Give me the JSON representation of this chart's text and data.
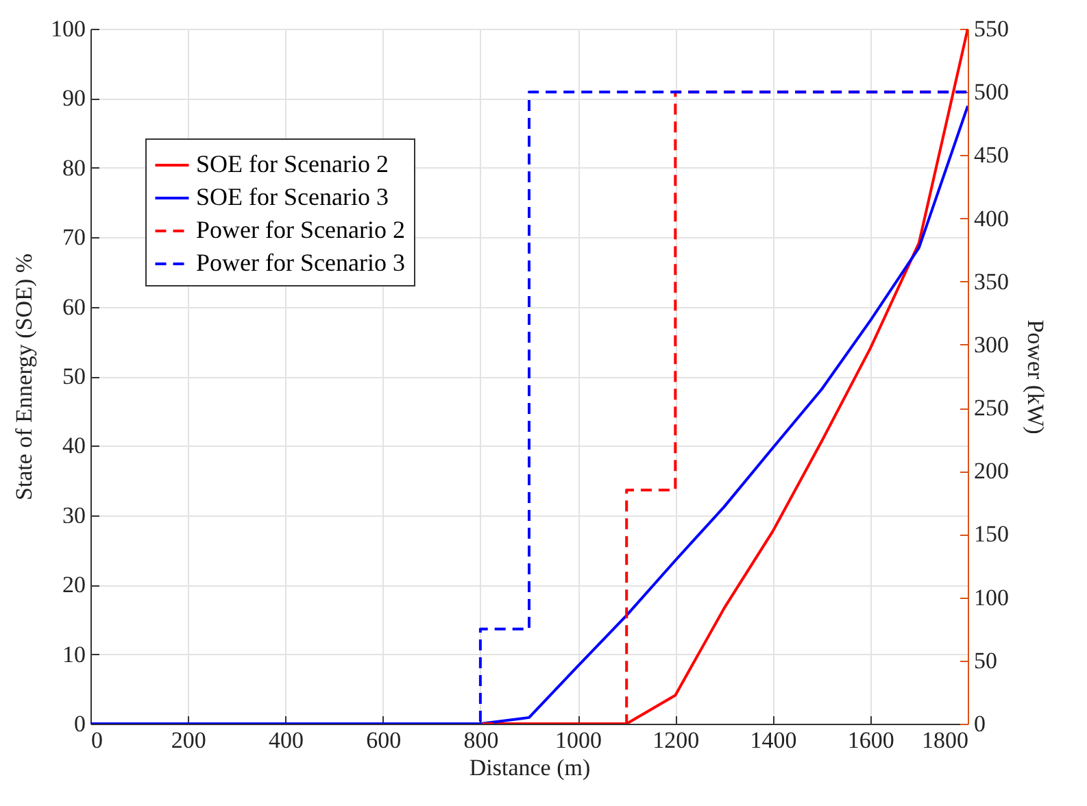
{
  "chart_data": {
    "type": "line",
    "xlabel": "Distance (m)",
    "ylabel": "State of Ennergy (SOE) %",
    "y2label": "Power (kW)",
    "xlim": [
      0,
      1800
    ],
    "xticks": [
      0,
      200,
      400,
      600,
      800,
      1000,
      1200,
      1400,
      1600,
      1800
    ],
    "ylim": [
      0,
      100
    ],
    "yticks": [
      0,
      10,
      20,
      30,
      40,
      50,
      60,
      70,
      80,
      90,
      100
    ],
    "y2lim": [
      0,
      550
    ],
    "y2ticks": [
      0,
      50,
      100,
      150,
      200,
      250,
      300,
      350,
      400,
      450,
      500,
      550
    ],
    "grid": true,
    "legend": "top left",
    "series": [
      {
        "name": "SOE for Scenario  2",
        "color": "#ff0000",
        "type": "line",
        "line_style": "solid",
        "x": [
          700,
          800,
          900,
          1000,
          1100,
          1200,
          1300,
          1400,
          1500,
          1600,
          1700,
          1800
        ],
        "values": [
          0,
          0,
          0,
          0,
          0,
          4.1,
          16.6,
          27.7,
          40.6,
          54,
          69.2,
          100
        ]
      },
      {
        "name": "SOE for Scenario  3",
        "color": "#0000ff",
        "type": "line",
        "line_style": "solid",
        "x": [
          0,
          100,
          200,
          300,
          400,
          500,
          600,
          700,
          800,
          900,
          1000,
          1100,
          1200,
          1300,
          1400,
          1500,
          1600,
          1700,
          1800
        ],
        "values": [
          0,
          0,
          0,
          0,
          0,
          0,
          0,
          0,
          0,
          0.9,
          8.3,
          15.6,
          23.5,
          31.2,
          39.7,
          48.1,
          58,
          68.5,
          88.9
        ]
      },
      {
        "name": "Power for Scenario 2",
        "color": "#ff0000",
        "type": "step",
        "line_style": "dashed",
        "axis": "y2",
        "x": [
          0,
          1100,
          1200,
          1800
        ],
        "values": [
          0,
          185,
          500,
          500
        ]
      },
      {
        "name": "Power for Scenario 3",
        "color": "#0000ff",
        "type": "step",
        "line_style": "dashed",
        "axis": "y2",
        "x": [
          0,
          800,
          900,
          1800
        ],
        "values": [
          0,
          75,
          500,
          500
        ]
      }
    ]
  }
}
